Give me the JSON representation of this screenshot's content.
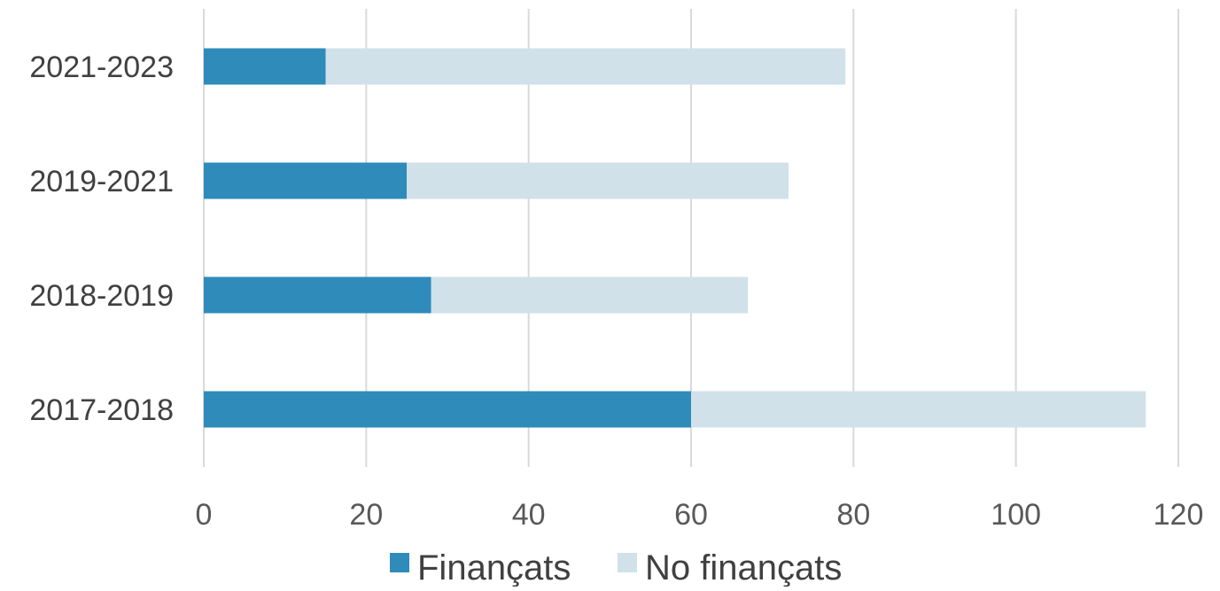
{
  "chart_data": {
    "type": "bar",
    "orientation": "horizontal",
    "stacked": true,
    "categories": [
      "2017-2018",
      "2018-2019",
      "2019-2021",
      "2021-2023"
    ],
    "series": [
      {
        "name": "Finançats",
        "color": "#2e8bba",
        "values": [
          60,
          28,
          25,
          15
        ]
      },
      {
        "name": "No finançats",
        "color": "#d0e1ea",
        "values": [
          56,
          39,
          47,
          64
        ]
      }
    ],
    "xlim": [
      0,
      120
    ],
    "xticks": [
      0,
      20,
      40,
      60,
      80,
      100,
      120
    ],
    "grid": true,
    "legend_position": "bottom"
  }
}
